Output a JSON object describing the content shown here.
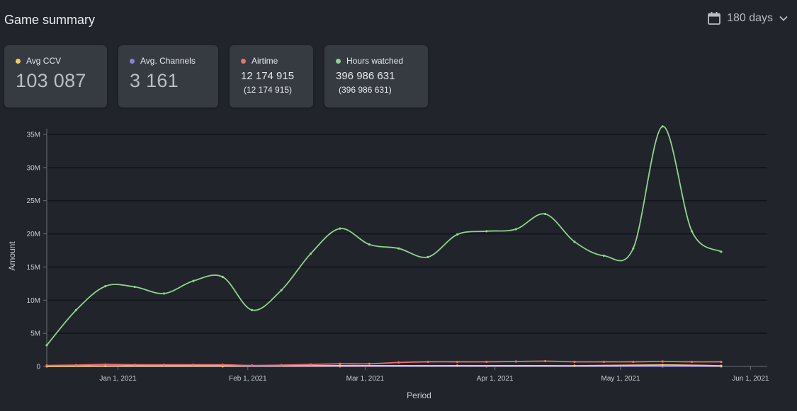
{
  "header": {
    "title": "Game summary",
    "range_label": "180 days"
  },
  "cards": [
    {
      "label": "Avg CCV",
      "value": "103 087",
      "color": "#f5cc5c"
    },
    {
      "label": "Avg. Channels",
      "value": "3 161",
      "color": "#8f7ddb"
    },
    {
      "label": "Airtime",
      "value": "12 174 915",
      "sub": "(12 174 915)",
      "color": "#ef6f6a"
    },
    {
      "label": "Hours watched",
      "value": "396 986 631",
      "sub": "(396 986 631)",
      "color": "#8ed38a"
    }
  ],
  "chart_data": {
    "type": "line",
    "xlabel": "Period",
    "ylabel": "Amount",
    "ylim": [
      0,
      35000000
    ],
    "yticks": [
      0,
      5000000,
      10000000,
      15000000,
      20000000,
      25000000,
      30000000,
      35000000
    ],
    "ytick_labels": [
      "0",
      "5M",
      "10M",
      "15M",
      "20M",
      "25M",
      "30M",
      "35M"
    ],
    "xlim": [
      "2020-12-15",
      "2021-06-05"
    ],
    "xticks": [
      "2021-01-01",
      "2021-02-01",
      "2021-03-01",
      "2021-04-01",
      "2021-05-01",
      "2021-06-01"
    ],
    "xtick_labels": [
      "Jan 1, 2021",
      "Feb 1, 2021",
      "Mar 1, 2021",
      "Apr 1, 2021",
      "May 1, 2021",
      "Jun 1, 2021"
    ],
    "grid": true,
    "series": [
      {
        "name": "Hours watched",
        "color": "#8ed38a",
        "points": [
          [
            "2020-12-15",
            3200000
          ],
          [
            "2020-12-22",
            8500000
          ],
          [
            "2020-12-29",
            12100000
          ],
          [
            "2021-01-05",
            12000000
          ],
          [
            "2021-01-12",
            11000000
          ],
          [
            "2021-01-19",
            12900000
          ],
          [
            "2021-01-26",
            13500000
          ],
          [
            "2021-02-02",
            8500000
          ],
          [
            "2021-02-09",
            11500000
          ],
          [
            "2021-02-16",
            17000000
          ],
          [
            "2021-02-23",
            20800000
          ],
          [
            "2021-03-02",
            18400000
          ],
          [
            "2021-03-09",
            17800000
          ],
          [
            "2021-03-16",
            16500000
          ],
          [
            "2021-03-23",
            19900000
          ],
          [
            "2021-03-30",
            20400000
          ],
          [
            "2021-04-06",
            20700000
          ],
          [
            "2021-04-13",
            23000000
          ],
          [
            "2021-04-20",
            18800000
          ],
          [
            "2021-04-27",
            16700000
          ],
          [
            "2021-05-04",
            17800000
          ],
          [
            "2021-05-11",
            36200000
          ],
          [
            "2021-05-18",
            20400000
          ],
          [
            "2021-05-25",
            17300000
          ]
        ]
      },
      {
        "name": "Airtime",
        "color": "#ef6f6a",
        "points": [
          [
            "2020-12-15",
            150000
          ],
          [
            "2020-12-22",
            200000
          ],
          [
            "2020-12-29",
            300000
          ],
          [
            "2021-01-05",
            250000
          ],
          [
            "2021-01-12",
            250000
          ],
          [
            "2021-01-19",
            250000
          ],
          [
            "2021-01-26",
            250000
          ],
          [
            "2021-02-02",
            150000
          ],
          [
            "2021-02-09",
            200000
          ],
          [
            "2021-02-16",
            300000
          ],
          [
            "2021-02-23",
            400000
          ],
          [
            "2021-03-02",
            400000
          ],
          [
            "2021-03-09",
            600000
          ],
          [
            "2021-03-16",
            700000
          ],
          [
            "2021-03-23",
            700000
          ],
          [
            "2021-03-30",
            700000
          ],
          [
            "2021-04-06",
            750000
          ],
          [
            "2021-04-13",
            800000
          ],
          [
            "2021-04-20",
            700000
          ],
          [
            "2021-04-27",
            700000
          ],
          [
            "2021-05-04",
            700000
          ],
          [
            "2021-05-11",
            750000
          ],
          [
            "2021-05-18",
            700000
          ],
          [
            "2021-05-25",
            700000
          ]
        ]
      },
      {
        "name": "Avg CCV",
        "color": "#f5cc5c",
        "points": [
          [
            "2020-12-15",
            20000
          ],
          [
            "2020-12-29",
            70000
          ],
          [
            "2021-01-26",
            80000
          ],
          [
            "2021-02-23",
            120000
          ],
          [
            "2021-03-23",
            120000
          ],
          [
            "2021-04-20",
            110000
          ],
          [
            "2021-05-11",
            220000
          ],
          [
            "2021-05-25",
            100000
          ]
        ]
      },
      {
        "name": "Avg. Channels",
        "color": "#8f7ddb",
        "points": [
          [
            "2020-12-15",
            5000
          ],
          [
            "2021-01-26",
            4000
          ],
          [
            "2021-02-23",
            5000
          ],
          [
            "2021-03-30",
            6000
          ],
          [
            "2021-05-11",
            5000
          ],
          [
            "2021-05-25",
            4000
          ]
        ]
      }
    ]
  }
}
